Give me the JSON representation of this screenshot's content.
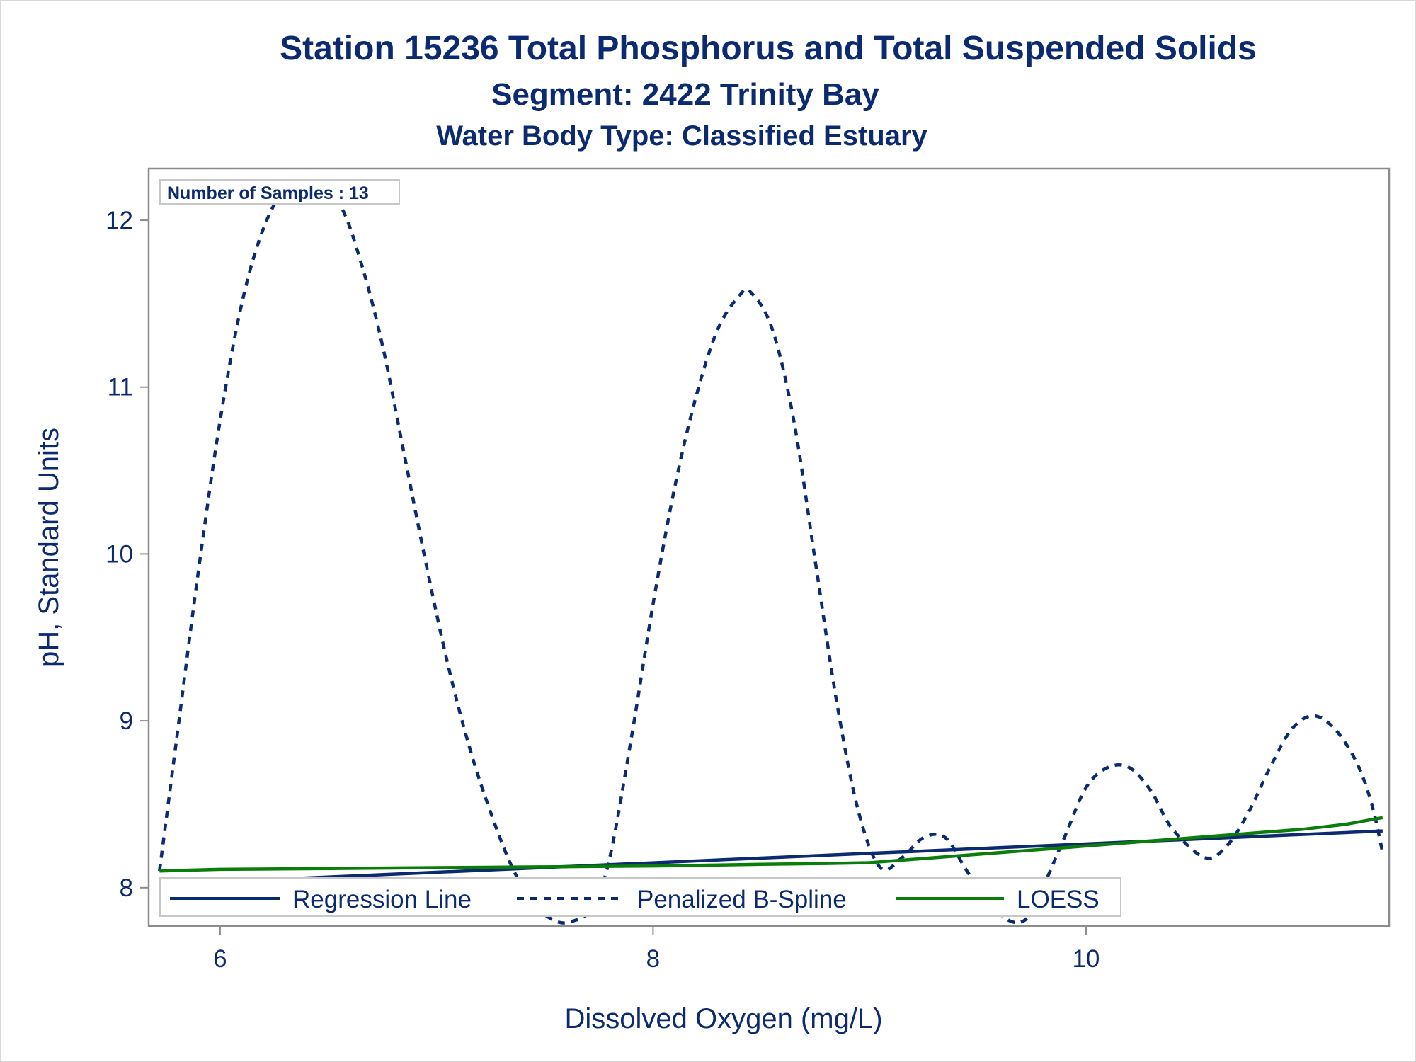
{
  "chart_data": {
    "type": "line",
    "title": "Station 15236  Total Phosphorus and Total Suspended Solids",
    "subtitle": "Segment: 2422  Trinity Bay",
    "subtitle2": "Water Body Type: Classified Estuary",
    "xlabel": "Dissolved Oxygen (mg/L)",
    "ylabel": "pH, Standard Units",
    "xlim": [
      5.67,
      11.4
    ],
    "ylim": [
      7.77,
      12.31
    ],
    "xticks": [
      6,
      8,
      10
    ],
    "yticks": [
      8,
      9,
      10,
      11,
      12
    ],
    "grid": false,
    "legend_position": "bottom-inside",
    "annotation": "Number of Samples : 13",
    "colors": {
      "navy": "#0b2a6f",
      "green": "#0a7d0a",
      "frame": "#8c8c8c"
    },
    "series": [
      {
        "name": "Regression Line",
        "style": "solid",
        "color": "#0b2a6f",
        "x": [
          5.72,
          11.37
        ],
        "y": [
          8.02,
          8.34
        ]
      },
      {
        "name": "Penalized B-Spline",
        "style": "dashed",
        "color": "#0b2a6f",
        "x": [
          5.72,
          5.8,
          5.9,
          6.0,
          6.1,
          6.2,
          6.3,
          6.42,
          6.55,
          6.65,
          6.75,
          6.85,
          6.95,
          7.05,
          7.15,
          7.25,
          7.35,
          7.45,
          7.55,
          7.63,
          7.72,
          7.8,
          7.9,
          8.0,
          8.1,
          8.2,
          8.3,
          8.4,
          8.45,
          8.55,
          8.65,
          8.75,
          8.85,
          8.95,
          9.05,
          9.15,
          9.25,
          9.35,
          9.45,
          9.55,
          9.65,
          9.73,
          9.8,
          9.9,
          10.0,
          10.1,
          10.2,
          10.3,
          10.4,
          10.55,
          10.65,
          10.75,
          10.85,
          10.95,
          11.05,
          11.15,
          11.25,
          11.32,
          11.37
        ],
        "y": [
          8.1,
          8.9,
          9.9,
          10.8,
          11.5,
          11.95,
          12.18,
          12.22,
          12.1,
          11.75,
          11.25,
          10.6,
          9.95,
          9.35,
          8.85,
          8.45,
          8.12,
          7.9,
          7.8,
          7.8,
          7.88,
          8.18,
          8.9,
          9.7,
          10.4,
          10.95,
          11.35,
          11.55,
          11.57,
          11.35,
          10.8,
          9.95,
          9.1,
          8.45,
          8.12,
          8.18,
          8.3,
          8.3,
          8.1,
          7.92,
          7.8,
          7.82,
          8.0,
          8.3,
          8.6,
          8.72,
          8.72,
          8.58,
          8.35,
          8.18,
          8.25,
          8.45,
          8.72,
          8.95,
          9.03,
          8.95,
          8.75,
          8.5,
          8.21
        ]
      },
      {
        "name": "LOESS",
        "style": "solid",
        "color": "#0a7d0a",
        "x": [
          5.72,
          6.0,
          6.5,
          7.0,
          7.5,
          8.0,
          8.5,
          8.8,
          9.0,
          9.2,
          9.4,
          9.6,
          9.8,
          10.0,
          10.2,
          10.4,
          10.6,
          10.8,
          11.0,
          11.2,
          11.37
        ],
        "y": [
          8.1,
          8.11,
          8.115,
          8.12,
          8.125,
          8.13,
          8.14,
          8.145,
          8.15,
          8.17,
          8.19,
          8.21,
          8.23,
          8.25,
          8.27,
          8.29,
          8.31,
          8.33,
          8.35,
          8.38,
          8.42
        ]
      }
    ]
  }
}
